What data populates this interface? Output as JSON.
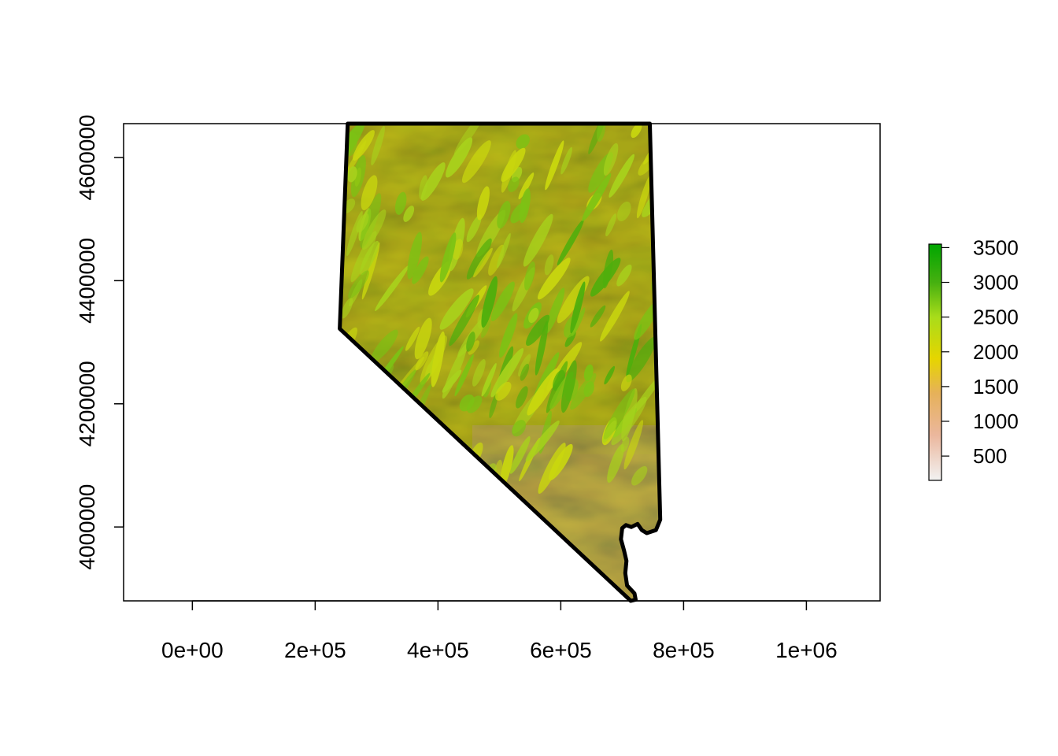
{
  "chart_data": {
    "type": "heatmap",
    "subject": "raster elevation map with state outline",
    "xlim": [
      -112000,
      1120000
    ],
    "ylim": [
      3880000,
      4655000
    ],
    "x_ticks": [
      {
        "value": 0,
        "label": "0e+00"
      },
      {
        "value": 200000,
        "label": "2e+05"
      },
      {
        "value": 400000,
        "label": "4e+05"
      },
      {
        "value": 600000,
        "label": "6e+05"
      },
      {
        "value": 800000,
        "label": "8e+05"
      },
      {
        "value": 1000000,
        "label": "1e+06"
      }
    ],
    "y_ticks": [
      {
        "value": 4000000,
        "label": "4000000"
      },
      {
        "value": 4200000,
        "label": "4200000"
      },
      {
        "value": 4400000,
        "label": "4400000"
      },
      {
        "value": 4600000,
        "label": "4600000"
      }
    ],
    "legend": {
      "placement": "right",
      "min": 150,
      "max": 3550,
      "breaks": [
        {
          "value": 500,
          "label": "500"
        },
        {
          "value": 1000,
          "label": "1000"
        },
        {
          "value": 1500,
          "label": "1500"
        },
        {
          "value": 2000,
          "label": "2000"
        },
        {
          "value": 2500,
          "label": "2500"
        },
        {
          "value": 3000,
          "label": "3000"
        },
        {
          "value": 3500,
          "label": "3500"
        }
      ],
      "color_stops": [
        {
          "value": 150,
          "color": "#f2f2f2"
        },
        {
          "value": 800,
          "color": "#ebb79d"
        },
        {
          "value": 1400,
          "color": "#e6b15a"
        },
        {
          "value": 1900,
          "color": "#e6d500"
        },
        {
          "value": 2500,
          "color": "#a9dc1a"
        },
        {
          "value": 3000,
          "color": "#46b010"
        },
        {
          "value": 3550,
          "color": "#00a600"
        }
      ]
    },
    "outline": {
      "color": "#000000",
      "points": [
        [
          253000,
          4655000
        ],
        [
          745000,
          4655000
        ],
        [
          762000,
          4012000
        ],
        [
          755000,
          3995000
        ],
        [
          740000,
          3990000
        ],
        [
          732000,
          3995000
        ],
        [
          725000,
          4005000
        ],
        [
          715000,
          4000000
        ],
        [
          706000,
          4003000
        ],
        [
          700000,
          3998000
        ],
        [
          698000,
          3980000
        ],
        [
          703000,
          3962000
        ],
        [
          707000,
          3945000
        ],
        [
          705000,
          3925000
        ],
        [
          708000,
          3905000
        ],
        [
          720000,
          3892000
        ],
        [
          722000,
          3882000
        ],
        [
          714000,
          3880000
        ],
        [
          240000,
          4322000
        ],
        [
          253000,
          4655000
        ]
      ]
    },
    "grid": false
  }
}
